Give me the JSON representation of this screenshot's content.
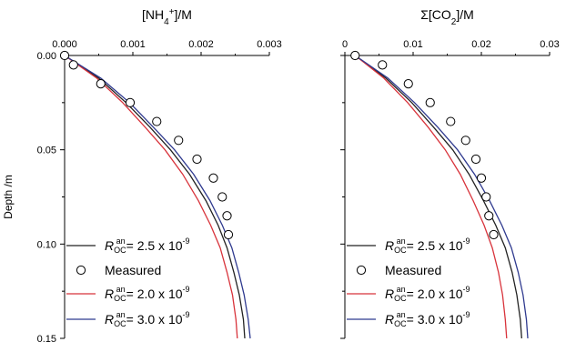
{
  "chart_data": [
    {
      "type": "line",
      "title": "[NH4+]/M",
      "title_parts": {
        "pre": "[NH",
        "sub": "4",
        "sup": "+",
        "post": "]/M"
      },
      "xlabel_position": "top",
      "ylabel": "Depth /m",
      "xlim": [
        0,
        0.003
      ],
      "ylim": [
        0,
        0.15
      ],
      "y_inverted": true,
      "xticks": [
        "0.000",
        "0.001",
        "0.002",
        "0.003"
      ],
      "xtick_values": [
        0,
        0.001,
        0.002,
        0.003
      ],
      "yticks": [
        "0.00",
        "0.05",
        "0.10",
        "0.15"
      ],
      "ytick_values": [
        0,
        0.05,
        0.1,
        0.15
      ],
      "series": [
        {
          "name": "R_OC^an = 2.5 x 10^-9",
          "kind": "line",
          "color": "#222222",
          "x": [
            0,
            0.0005,
            0.0009,
            0.00125,
            0.00155,
            0.00183,
            0.00207,
            0.00225,
            0.00238,
            0.00248,
            0.00256,
            0.00262,
            0.00264
          ],
          "y": [
            0,
            0.012,
            0.025,
            0.038,
            0.05,
            0.063,
            0.077,
            0.09,
            0.102,
            0.115,
            0.127,
            0.14,
            0.15
          ]
        },
        {
          "name": "Measured",
          "kind": "scatter",
          "color": "#000000",
          "x": [
            0.0,
            0.00013,
            0.00053,
            0.00096,
            0.00135,
            0.00167,
            0.00194,
            0.00218,
            0.00231,
            0.00238,
            0.0024
          ],
          "y": [
            0.0,
            0.005,
            0.015,
            0.025,
            0.035,
            0.045,
            0.055,
            0.065,
            0.075,
            0.085,
            0.095
          ]
        },
        {
          "name": "R_OC^an = 2.0 x 10^-9",
          "kind": "line",
          "color": "#d8333b",
          "x": [
            0,
            0.00047,
            0.00085,
            0.00118,
            0.00147,
            0.00173,
            0.00196,
            0.00214,
            0.00228,
            0.00238,
            0.00246,
            0.00251,
            0.00253
          ],
          "y": [
            0,
            0.012,
            0.025,
            0.038,
            0.05,
            0.063,
            0.077,
            0.09,
            0.102,
            0.115,
            0.127,
            0.14,
            0.15
          ]
        },
        {
          "name": "R_OC^an = 3.0 x 10^-9",
          "kind": "line",
          "color": "#2f3a8f",
          "x": [
            0,
            0.00053,
            0.00095,
            0.0013,
            0.00161,
            0.00189,
            0.00213,
            0.00231,
            0.00245,
            0.00255,
            0.00263,
            0.00269,
            0.00272
          ],
          "y": [
            0,
            0.012,
            0.025,
            0.038,
            0.05,
            0.063,
            0.077,
            0.09,
            0.102,
            0.115,
            0.127,
            0.14,
            0.15
          ]
        }
      ],
      "legend": [
        {
          "kind": "line",
          "color": "#222222",
          "label_pre": "",
          "sub": "OC",
          "sup": "an",
          "label_post": "= 2.5 x 10",
          "exp": "-9"
        },
        {
          "kind": "marker",
          "label": "Measured"
        },
        {
          "kind": "line",
          "color": "#d8333b",
          "label_pre": "",
          "sub": "OC",
          "sup": "an",
          "label_post": "= 2.0 x 10",
          "exp": "-9"
        },
        {
          "kind": "line",
          "color": "#2f3a8f",
          "label_pre": "",
          "sub": "OC",
          "sup": "an",
          "label_post": "= 3.0 x 10",
          "exp": "-9"
        }
      ],
      "legend_placement": "bottom-left"
    },
    {
      "type": "line",
      "title": "Σ[CO2]/M",
      "title_parts": {
        "pre": "Σ[CO",
        "sub": "2",
        "sup": "",
        "post": "]/M"
      },
      "xlabel_position": "top",
      "ylabel": "",
      "xlim": [
        0,
        0.03
      ],
      "ylim": [
        0,
        0.15
      ],
      "y_inverted": true,
      "xticks": [
        "0",
        "0.01",
        "0.02",
        "0.03"
      ],
      "xtick_values": [
        0,
        0.01,
        0.02,
        0.03
      ],
      "yticks": [],
      "ytick_values": [
        0,
        0.05,
        0.1,
        0.15
      ],
      "series": [
        {
          "name": "R_OC^an = 2.5 x 10^-9",
          "kind": "line",
          "color": "#222222",
          "x": [
            0.0015,
            0.006,
            0.0098,
            0.013,
            0.0158,
            0.0182,
            0.0203,
            0.0221,
            0.0235,
            0.0245,
            0.0252,
            0.0257,
            0.0259
          ],
          "y": [
            0,
            0.012,
            0.025,
            0.038,
            0.05,
            0.063,
            0.077,
            0.09,
            0.102,
            0.115,
            0.127,
            0.14,
            0.15
          ]
        },
        {
          "name": "Measured",
          "kind": "scatter",
          "color": "#000000",
          "x": [
            0.0015,
            0.0055,
            0.0093,
            0.0125,
            0.0155,
            0.0177,
            0.0192,
            0.02,
            0.0207,
            0.0211,
            0.0218
          ],
          "y": [
            0.0,
            0.005,
            0.015,
            0.025,
            0.035,
            0.045,
            0.055,
            0.065,
            0.075,
            0.085,
            0.095
          ]
        },
        {
          "name": "R_OC^an = 2.0 x 10^-9",
          "kind": "line",
          "color": "#d8333b",
          "x": [
            0.0015,
            0.0057,
            0.0092,
            0.0122,
            0.0147,
            0.0169,
            0.0188,
            0.0204,
            0.0216,
            0.0225,
            0.0231,
            0.0235,
            0.0237
          ],
          "y": [
            0,
            0.012,
            0.025,
            0.038,
            0.05,
            0.063,
            0.077,
            0.09,
            0.102,
            0.115,
            0.127,
            0.14,
            0.15
          ]
        },
        {
          "name": "R_OC^an = 3.0 x 10^-9",
          "kind": "line",
          "color": "#2f3a8f",
          "x": [
            0.0015,
            0.0063,
            0.0102,
            0.0136,
            0.0165,
            0.019,
            0.0212,
            0.023,
            0.0244,
            0.0254,
            0.0261,
            0.0266,
            0.0268
          ],
          "y": [
            0,
            0.012,
            0.025,
            0.038,
            0.05,
            0.063,
            0.077,
            0.09,
            0.102,
            0.115,
            0.127,
            0.14,
            0.15
          ]
        }
      ],
      "legend": [
        {
          "kind": "line",
          "color": "#222222",
          "label_pre": "",
          "sub": "OC",
          "sup": "an",
          "label_post": "= 2.5 x 10",
          "exp": "-9"
        },
        {
          "kind": "marker",
          "label": "Measured"
        },
        {
          "kind": "line",
          "color": "#d8333b",
          "label_pre": "",
          "sub": "OC",
          "sup": "an",
          "label_post": "= 2.0 x 10",
          "exp": "-9"
        },
        {
          "kind": "line",
          "color": "#2f3a8f",
          "label_pre": "",
          "sub": "OC",
          "sup": "an",
          "label_post": "= 3.0 x 10",
          "exp": "-9"
        }
      ],
      "legend_placement": "bottom-left"
    }
  ],
  "legend_symbol": "R",
  "colors": {
    "axis": "#000000",
    "black_line": "#222222",
    "red_line": "#d8333b",
    "blue_line": "#2f3a8f"
  }
}
